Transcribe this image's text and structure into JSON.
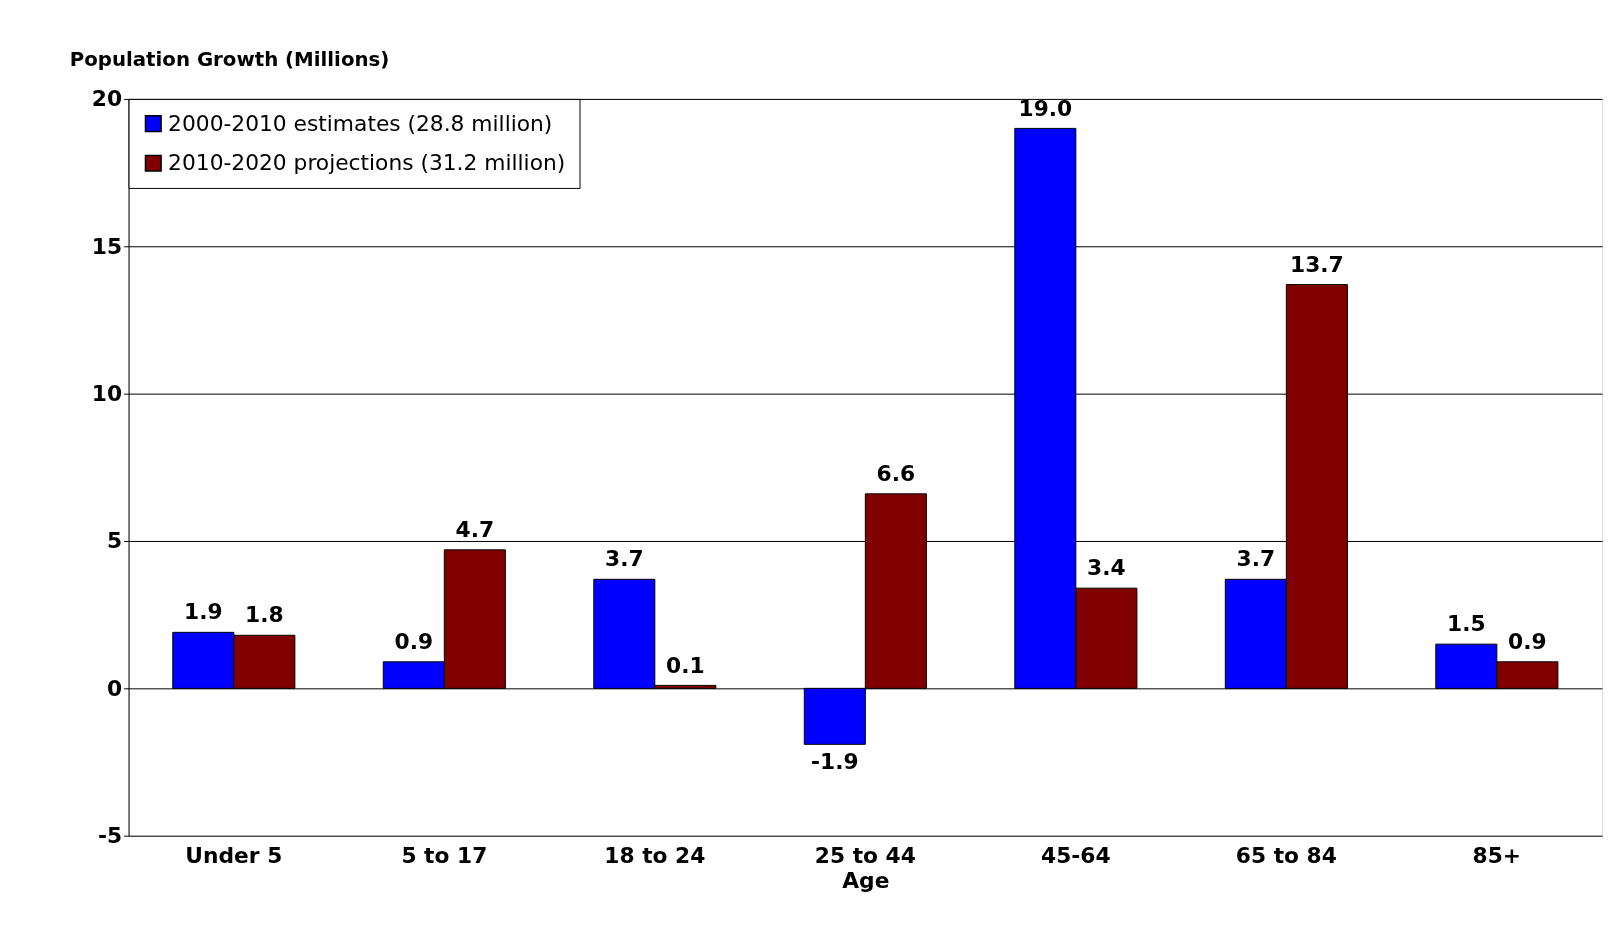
{
  "chart_data": {
    "type": "bar",
    "ylabel": "Population Growth (Millions)",
    "xlabel": "Age",
    "categories": [
      "Under 5",
      "5 to 17",
      "18 to 24",
      "25 to 44",
      "45-64",
      "65 to 84",
      "85+"
    ],
    "series": [
      {
        "name": "2000-2010 estimates (28.8 million)",
        "color": "#0000ff",
        "values": [
          1.9,
          0.9,
          3.7,
          -1.9,
          19.0,
          3.7,
          1.5
        ],
        "value_labels": [
          "1.9",
          "0.9",
          "3.7",
          "-1.9",
          "19.0",
          "3.7",
          "1.5"
        ]
      },
      {
        "name": "2010-2020 projections (31.2 million)",
        "color": "#800000",
        "values": [
          1.8,
          4.7,
          0.1,
          6.6,
          3.4,
          13.7,
          0.9
        ],
        "value_labels": [
          "1.8",
          "4.7",
          "0.1",
          "6.6",
          "3.4",
          "13.7",
          "0.9"
        ]
      }
    ],
    "ylim": [
      -5,
      20
    ],
    "yticks": [
      -5,
      0,
      5,
      10,
      15,
      20
    ],
    "grid": "y",
    "legend": "top left"
  }
}
